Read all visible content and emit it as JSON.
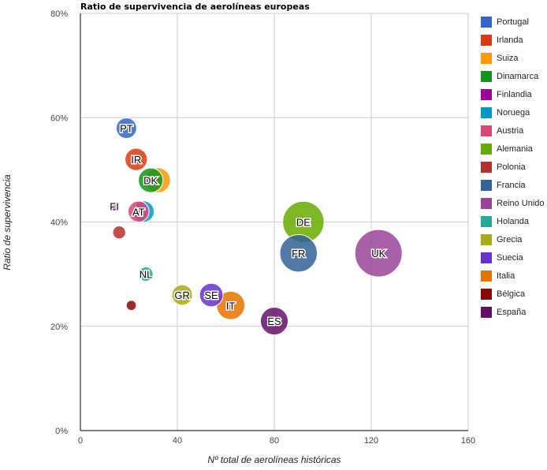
{
  "chart_data": {
    "type": "scatter",
    "subtype": "bubble",
    "title": "Ratio de supervivencia de aerolíneas europeas",
    "xlabel": "Nº total de aerolíneas históricas",
    "ylabel": "Ratio de supervivencia",
    "xlim": [
      0,
      160
    ],
    "ylim": [
      0,
      80
    ],
    "xticks": [
      "0",
      "40",
      "80",
      "120",
      "160"
    ],
    "yticks": [
      "0%",
      "20%",
      "40%",
      "60%",
      "80%"
    ],
    "grid": true,
    "legend_position": "right",
    "series": [
      {
        "name": "Portugal",
        "label": "PT",
        "x": 19,
        "y": 58,
        "size": 19,
        "color": "#3366cc"
      },
      {
        "name": "Irlanda",
        "label": "IR",
        "x": 23,
        "y": 52,
        "size": 23,
        "color": "#dc3912"
      },
      {
        "name": "Suiza",
        "label": "",
        "x": 32,
        "y": 48,
        "size": 30,
        "color": "#ff9900"
      },
      {
        "name": "Dinamarca",
        "label": "DK",
        "x": 29,
        "y": 48,
        "size": 29,
        "color": "#109618"
      },
      {
        "name": "Finlandia",
        "label": "FI",
        "x": 14,
        "y": 43,
        "size": 2,
        "color": "#990099"
      },
      {
        "name": "Noruega",
        "label": "",
        "x": 26,
        "y": 42,
        "size": 21,
        "color": "#0099c6"
      },
      {
        "name": "Austria",
        "label": "AT",
        "x": 24,
        "y": 42,
        "size": 20,
        "color": "#dd4477"
      },
      {
        "name": "Alemania",
        "label": "DE",
        "x": 92,
        "y": 40,
        "size": 92,
        "color": "#66aa00"
      },
      {
        "name": "Polonia",
        "label": "",
        "x": 16,
        "y": 38,
        "size": 6,
        "color": "#b82e2e"
      },
      {
        "name": "Francia",
        "label": "FR",
        "x": 90,
        "y": 34,
        "size": 74,
        "color": "#316395"
      },
      {
        "name": "Reino Unido",
        "label": "UK",
        "x": 123,
        "y": 34,
        "size": 123,
        "color": "#994499"
      },
      {
        "name": "Holanda",
        "label": "NL",
        "x": 27,
        "y": 30,
        "size": 8,
        "color": "#22aa99"
      },
      {
        "name": "Grecia",
        "label": "GR",
        "x": 42,
        "y": 26,
        "size": 19,
        "color": "#aaaa11"
      },
      {
        "name": "Suecia",
        "label": "SE",
        "x": 54,
        "y": 26,
        "size": 26,
        "color": "#6633cc"
      },
      {
        "name": "Italia",
        "label": "IT",
        "x": 62,
        "y": 24,
        "size": 40,
        "color": "#e67300"
      },
      {
        "name": "Bélgica",
        "label": "",
        "x": 21,
        "y": 24,
        "size": 3,
        "color": "#8b0707"
      },
      {
        "name": "España",
        "label": "ES",
        "x": 80,
        "y": 21,
        "size": 38,
        "color": "#651067"
      }
    ]
  }
}
